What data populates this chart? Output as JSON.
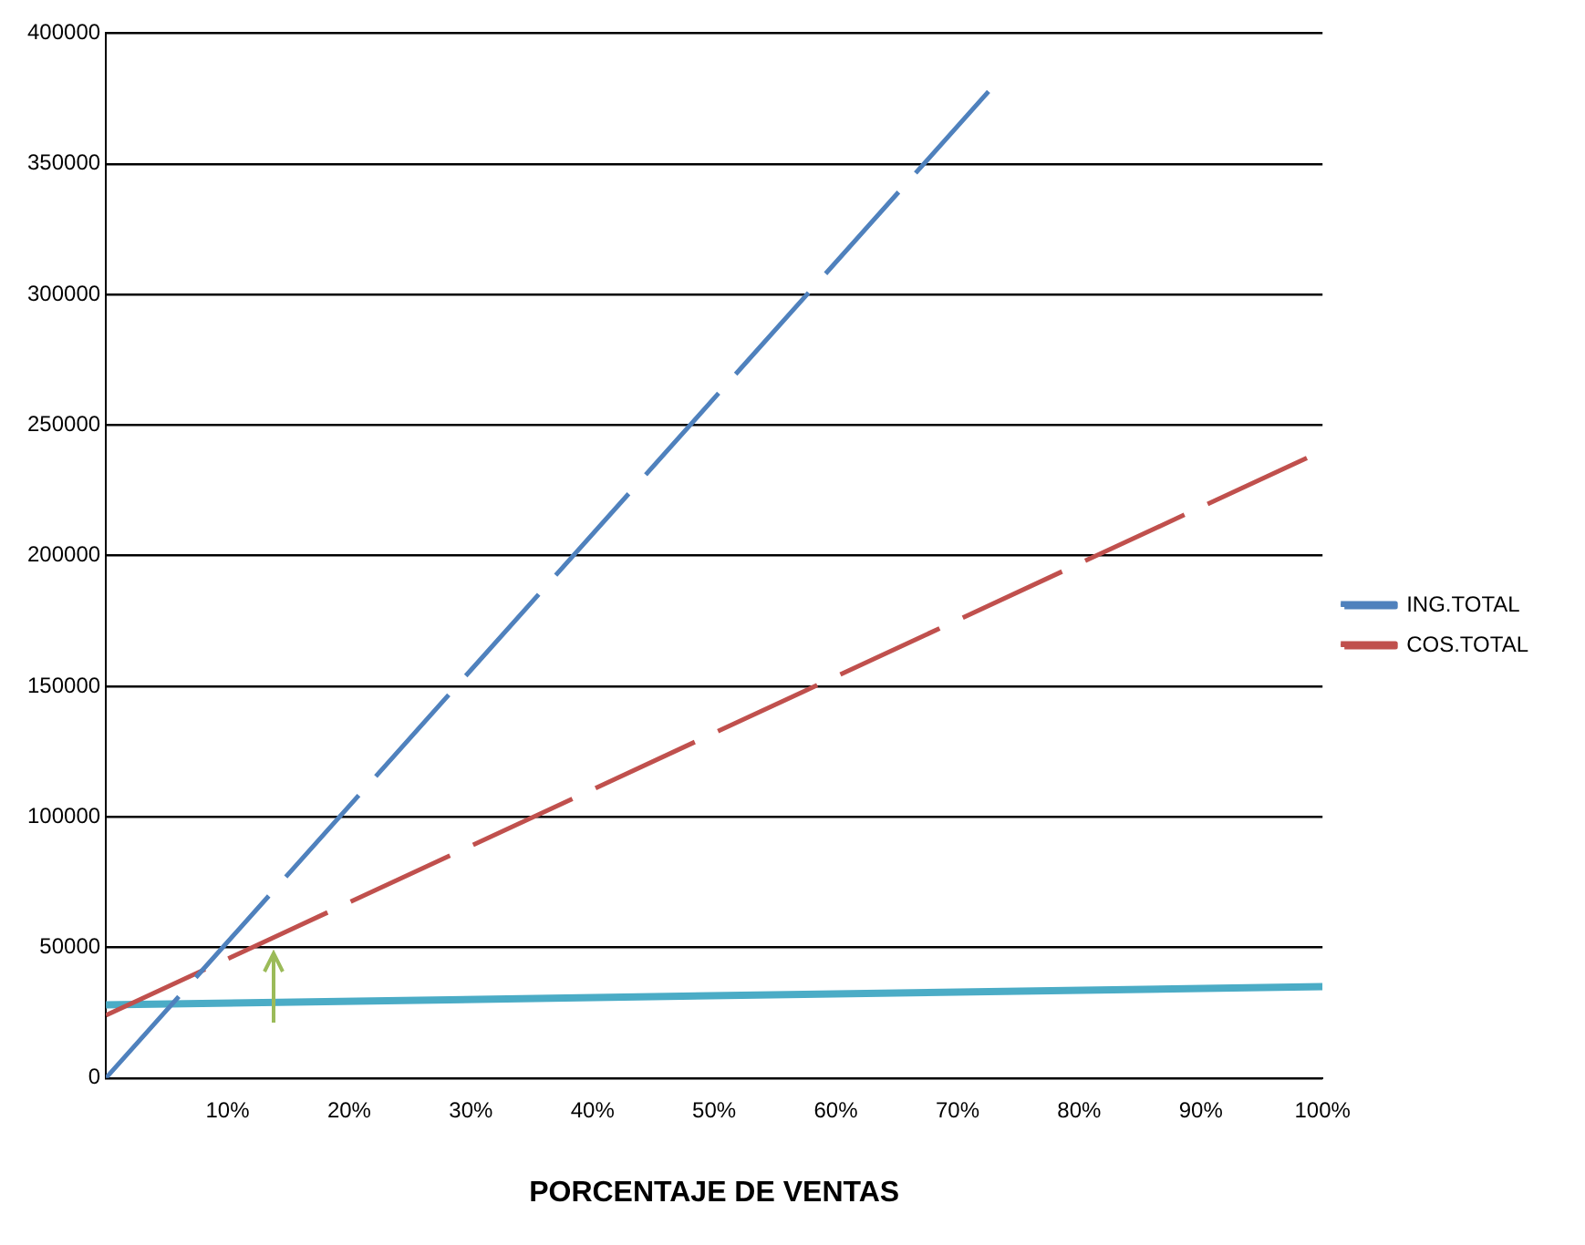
{
  "chart_data": {
    "type": "line",
    "xlabel": "PORCENTAJE DE VENTAS",
    "series": [
      {
        "name": "ING.TOTAL",
        "color": "#4f81bd",
        "x": [
          0,
          73
        ],
        "values": [
          0,
          380000
        ],
        "line_style": "dashed"
      },
      {
        "name": "COS.TOTAL",
        "color": "#c0504d",
        "x": [
          0,
          99
        ],
        "values": [
          24000,
          238000
        ],
        "line_style": "dashed"
      },
      {
        "color": "#4bacc6",
        "x": [
          0,
          100
        ],
        "values": [
          28000,
          35000
        ],
        "line_style": "solid"
      }
    ],
    "xlim": [
      0,
      100
    ],
    "xticks": [
      {
        "value": 10,
        "label": "10%"
      },
      {
        "value": 20,
        "label": "20%"
      },
      {
        "value": 30,
        "label": "30%"
      },
      {
        "value": 40,
        "label": "40%"
      },
      {
        "value": 50,
        "label": "50%"
      },
      {
        "value": 60,
        "label": "60%"
      },
      {
        "value": 70,
        "label": "70%"
      },
      {
        "value": 80,
        "label": "80%"
      },
      {
        "value": 90,
        "label": "90%"
      },
      {
        "value": 100,
        "label": "100%"
      }
    ],
    "ylim": [
      0,
      400000
    ],
    "yticks": [
      0,
      50000,
      100000,
      150000,
      200000,
      250000,
      300000,
      350000,
      400000
    ],
    "grid": "y",
    "legend": "right",
    "marker": "none"
  }
}
